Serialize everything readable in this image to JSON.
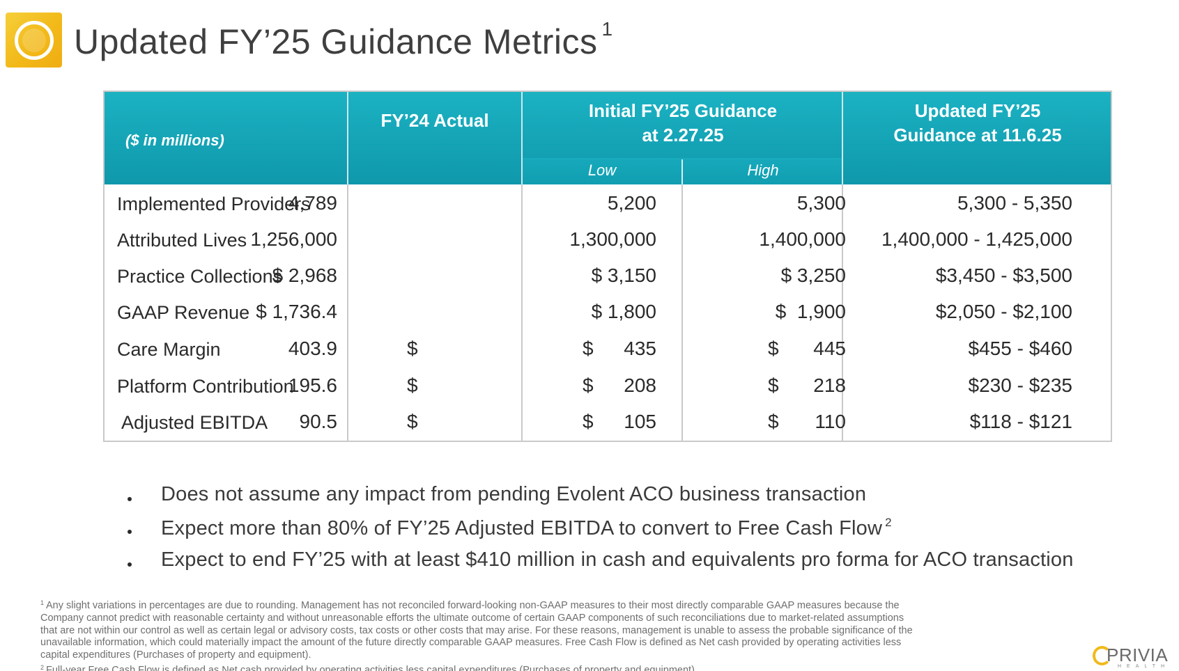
{
  "header": {
    "title": "Updated FY’25 Guidance Metrics",
    "title_footnote": "1"
  },
  "table": {
    "unit_label": "($ in millions)",
    "col_fy24": "FY’24 Actual",
    "col_initial_line1": "Initial FY’25 Guidance",
    "col_initial_line2": "at 2.27.25",
    "col_low": "Low",
    "col_high": "High",
    "col_updated_line1": "Updated FY’25",
    "col_updated_line2": "Guidance at 11.6.25",
    "rows": [
      {
        "label": "Implemented Providers",
        "fy24": "4,789",
        "low": "5,200",
        "high": "5,300",
        "updated": "5,300 - 5,350"
      },
      {
        "label": "Attributed Lives",
        "fy24": "1,256,000",
        "low": "1,300,000",
        "high": "1,400,000",
        "updated": "1,400,000 - 1,425,000"
      },
      {
        "label": "Practice Collections",
        "fy24": "$ 2,968",
        "low": "$ 3,150",
        "high": "$ 3,250",
        "updated": "$3,450 - $3,500"
      },
      {
        "label": "GAAP Revenue",
        "fy24": "$ 1,736.4",
        "low": "$ 1,800",
        "high": "$  1,900",
        "updated": "$2,050 - $2,100"
      },
      {
        "label": "Care Margin",
        "fy24_sym": "$",
        "fy24": "403.9",
        "low_sym": "$",
        "low": "435",
        "high_sym": "$",
        "high": "445",
        "updated": "$455 - $460"
      },
      {
        "label": "Platform Contribution",
        "fy24_sym": "$",
        "fy24": "195.6",
        "low_sym": "$",
        "low": "208",
        "high_sym": "$",
        "high": "218",
        "updated": "$230 - $235"
      },
      {
        "label": "Adjusted EBITDA",
        "fy24_sym": "$",
        "fy24": "90.5",
        "low_sym": "$",
        "low": "105",
        "high_sym": "$",
        "high": "110",
        "updated": "$118 - $121"
      }
    ]
  },
  "bullets": [
    {
      "text": "Does not assume any impact from pending Evolent ACO business transaction",
      "sup": ""
    },
    {
      "text": "Expect more than 80% of FY’25 Adjusted EBITDA to convert to Free Cash Flow",
      "sup": "2"
    },
    {
      "text": "Expect to end FY’25 with at least $410 million in cash and equivalents pro forma for ACO transaction",
      "sup": ""
    }
  ],
  "footnotes": {
    "note1_mark": "1",
    "note1_lines": [
      "Any slight variations in percentages are due to rounding. Management has not reconciled forward-looking non-GAAP measures to their most directly comparable GAAP measures because the",
      "Company cannot predict with reasonable certainty and without unreasonable efforts the ultimate outcome of certain GAAP components of such reconciliations due to market-related assumptions",
      "that are not within our control as well as certain legal or advisory costs, tax costs or other costs that may arise. For these reasons, management is unable to assess the probable significance of the",
      "unavailable information, which could materially impact the amount of the future directly comparable GAAP measures. Free Cash Flow is defined as Net cash provided by operating activities less",
      "capital expenditures (Purchases of property and equipment)."
    ],
    "note2_mark": "2",
    "note2": "Full-year Free Cash Flow is defined as Net cash provided by operating activities less capital expenditures (Purchases of property and equipment)."
  },
  "brand": {
    "name": "PRIVIA",
    "sub": "HEALTH"
  },
  "colors": {
    "header_teal": "#12a3b5",
    "logo_yellow": "#f2b919"
  }
}
